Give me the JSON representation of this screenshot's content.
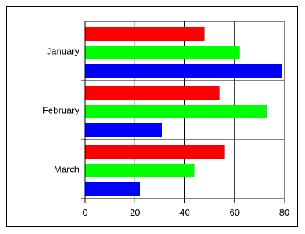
{
  "chart_data": {
    "type": "bar",
    "orientation": "horizontal",
    "categories": [
      "January",
      "February",
      "March"
    ],
    "series": [
      {
        "values": [
          48,
          54,
          56
        ],
        "color": "#ff0000"
      },
      {
        "values": [
          62,
          73,
          44
        ],
        "color": "#00ff00"
      },
      {
        "values": [
          79,
          31,
          22
        ],
        "color": "#0000ff"
      }
    ],
    "x_ticks": [
      "0",
      "20",
      "40",
      "60",
      "80"
    ],
    "xlim": [
      0,
      80
    ],
    "grid": true,
    "title": "",
    "xlabel": "",
    "ylabel": ""
  }
}
